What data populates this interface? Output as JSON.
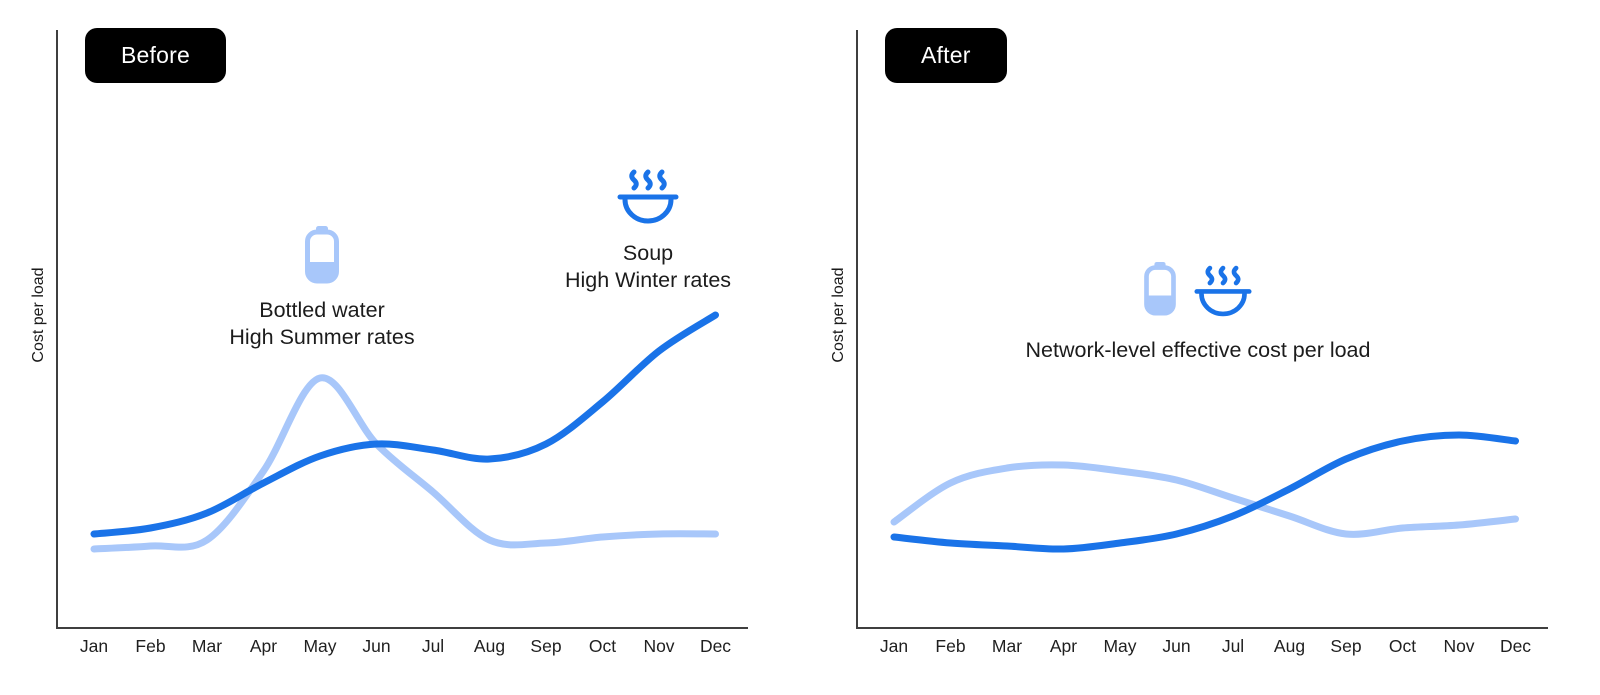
{
  "page": {
    "background": "#ffffff"
  },
  "colors": {
    "soup_line": "#1A73E8",
    "bottled_water_line": "#A8C7FA",
    "badge_bg": "#000000",
    "badge_text": "#ffffff",
    "axis": "#3f3f3f",
    "text": "#202124"
  },
  "panels": [
    {
      "id": "before",
      "badge": "Before",
      "annotations": [
        {
          "icon": "bottle-icon",
          "lines": [
            "Bottled water",
            "High Summer rates"
          ]
        },
        {
          "icon": "soup-icon",
          "lines": [
            "Soup",
            "High Winter rates"
          ]
        }
      ]
    },
    {
      "id": "after",
      "badge": "After",
      "annotations": [
        {
          "icon": "bottle-icon + soup-icon",
          "lines": [
            "Network-level effective cost per load"
          ]
        }
      ]
    }
  ],
  "chart_data": [
    {
      "type": "line",
      "title": "Before",
      "x": [
        "Jan",
        "Feb",
        "Mar",
        "Apr",
        "May",
        "Jun",
        "Jul",
        "Aug",
        "Sep",
        "Oct",
        "Nov",
        "Dec"
      ],
      "xlabel": "",
      "ylabel": "Cost per load",
      "y_axis_ticks": "none (relative cost, unlabeled)",
      "ylim": [
        0,
        12
      ],
      "grid": false,
      "legend_position": "inline annotations",
      "series": [
        {
          "key": "bottled-water",
          "name": "Bottled water — High Summer rates",
          "color": "#A8C7FA",
          "values": [
            2.6,
            2.7,
            2.9,
            5.2,
            8.3,
            6.1,
            4.5,
            2.9,
            2.8,
            3.0,
            3.1,
            3.1
          ]
        },
        {
          "key": "soup",
          "name": "Soup — High Winter rates",
          "color": "#1A73E8",
          "values": [
            3.1,
            3.3,
            3.8,
            4.8,
            5.7,
            6.1,
            5.9,
            5.6,
            6.1,
            7.5,
            9.2,
            10.4
          ]
        }
      ]
    },
    {
      "type": "line",
      "title": "After",
      "x": [
        "Jan",
        "Feb",
        "Mar",
        "Apr",
        "May",
        "Jun",
        "Jul",
        "Aug",
        "Sep",
        "Oct",
        "Nov",
        "Dec"
      ],
      "xlabel": "",
      "ylabel": "Cost per load",
      "y_axis_ticks": "none (relative cost, unlabeled)",
      "ylim": [
        0,
        12
      ],
      "grid": false,
      "annotation": "Network-level effective cost per load",
      "series": [
        {
          "key": "bottled-water",
          "name": "Bottled water (network-level)",
          "color": "#A8C7FA",
          "values": [
            3.5,
            4.8,
            5.3,
            5.4,
            5.2,
            4.9,
            4.3,
            3.7,
            3.1,
            3.3,
            3.4,
            3.6
          ]
        },
        {
          "key": "soup",
          "name": "Soup (network-level)",
          "color": "#1A73E8",
          "values": [
            3.0,
            2.8,
            2.7,
            2.6,
            2.8,
            3.1,
            3.7,
            4.6,
            5.6,
            6.2,
            6.4,
            6.2
          ]
        }
      ]
    }
  ]
}
